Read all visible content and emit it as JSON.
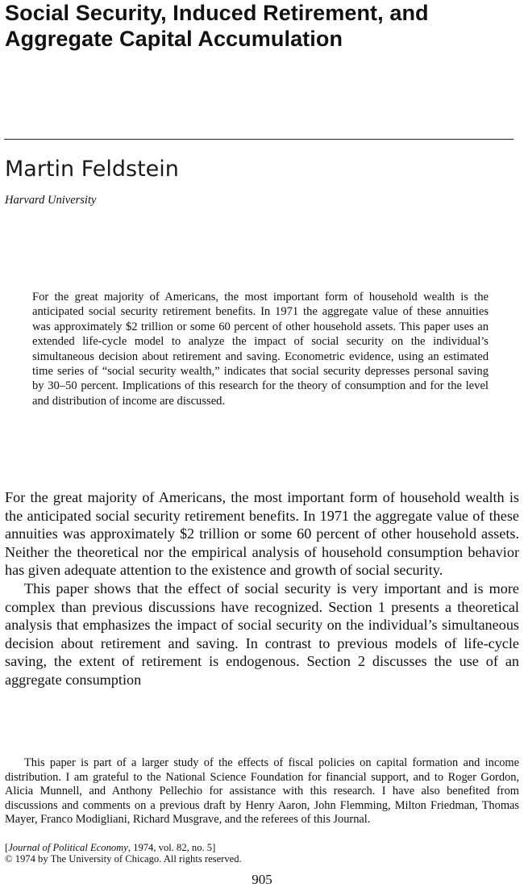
{
  "article": {
    "title": "Social Security, Induced Retirement, and Aggregate Capital Accumulation",
    "author": "Martin Feldstein",
    "affiliation": "Harvard University",
    "abstract": "For the great majority of Americans, the most important form of household wealth is the anticipated social security retirement benefits. In 1971 the aggregate value of these annuities was approximately $2 trillion or some 60 percent of other household assets. This paper uses an extended life-cycle model to analyze the impact of social security on the individual’s simultaneous decision about retirement and saving. Econometric evidence, using an estimated time series of “social security wealth,” indicates that social security depresses personal saving by 30–50 percent. Implications of this research for the theory of consumption and for the level and distribution of income are discussed.",
    "body": [
      "For the great majority of Americans, the most important form of household wealth is the anticipated social security retirement benefits. In 1971 the aggregate value of these annuities was approximately $2 trillion or some 60 percent of other household assets. Neither the theoretical nor the empirical analysis of household consumption behavior has given adequate attention to the existence and growth of social security.",
      "This paper shows that the effect of social security is very important and is more complex than previous discussions have recognized. Section 1 presents a theoretical analysis that emphasizes the impact of social security on the individual’s simultaneous decision about retirement and saving. In contrast to previous models of life-cycle saving, the extent of retirement is endogenous. Section 2 discusses the use of an aggregate consumption"
    ],
    "footnote": "This paper is part of a larger study of the effects of fiscal policies on capital formation and income distribution. I am grateful to the National Science Foundation for financial support, and to Roger Gordon, Alicia Munnell, and Anthony Pellechio for assistance with this research. I have also benefited from discussions and comments on a previous draft by Henry Aaron, John Flemming, Milton Friedman, Thomas Mayer, Franco Modigliani, Richard Musgrave, and the referees of this Journal.",
    "citation": {
      "open": "[",
      "journal": "Journal of Political Economy",
      "details": ", 1974, vol. 82, no. 5]",
      "copyright": "© 1974 by The University of Chicago. All rights reserved."
    },
    "page_number": "905"
  }
}
